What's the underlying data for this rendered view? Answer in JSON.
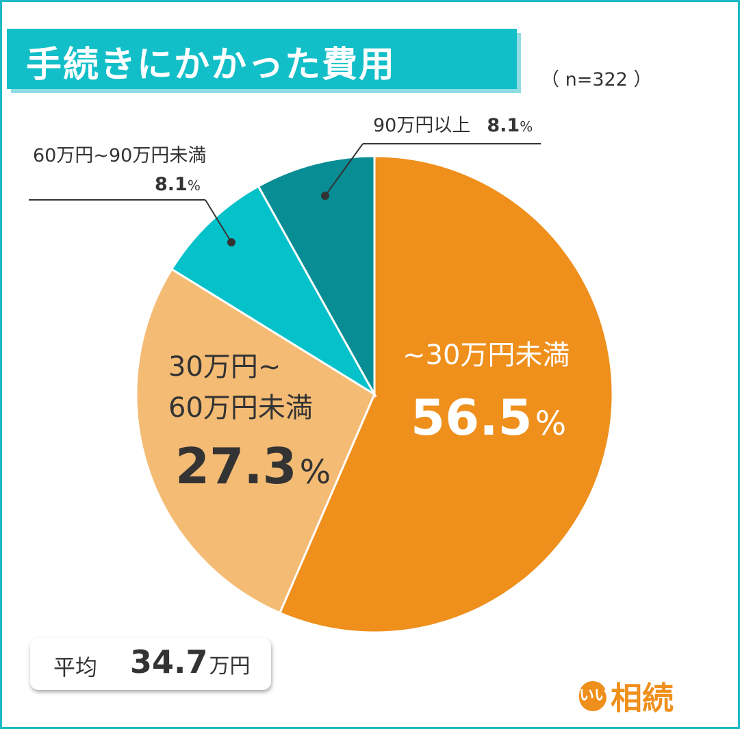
{
  "title": "手続きにかかった費用",
  "sample": "（ n=322 ）",
  "colors": {
    "border": "#1ab9c4",
    "title_bg": "#12bfc8",
    "slice_1": "#ef8f1c",
    "slice_2": "#f4bb75",
    "slice_3": "#05c1c9",
    "slice_4": "#098d94",
    "text_dark": "#333333"
  },
  "chart_data": {
    "type": "pie",
    "slices": [
      {
        "label": "~30万円未満",
        "value": 56.5,
        "value_text": "56.5",
        "unit": "%",
        "color": "#ef8f1c"
      },
      {
        "label": "30万円~\n60万円未満",
        "value": 27.3,
        "value_text": "27.3",
        "unit": "%",
        "color": "#f4bb75"
      },
      {
        "label": "60万円~90万円未満",
        "value": 8.1,
        "value_text": "8.1",
        "unit": "%",
        "color": "#05c1c9"
      },
      {
        "label": "90万円以上",
        "value": 8.1,
        "value_text": "8.1",
        "unit": "%",
        "color": "#098d94"
      }
    ],
    "start_angle": "12 o'clock",
    "direction": "clockwise",
    "legend": "none"
  },
  "average": {
    "label": "平均",
    "value": "34.7",
    "unit": "万円"
  },
  "logo": {
    "badge": "いい",
    "text": "相続"
  }
}
